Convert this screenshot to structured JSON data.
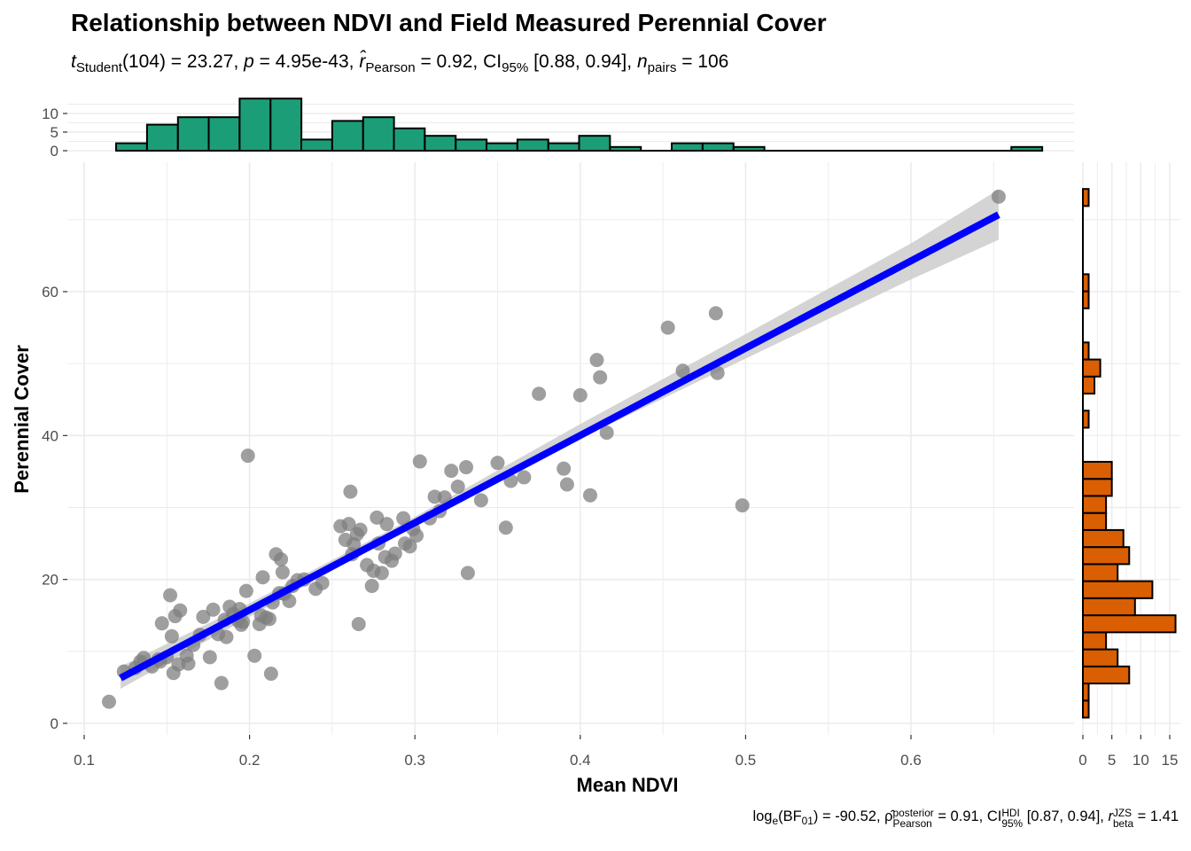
{
  "title": "Relationship between NDVI and Field Measured Perennial Cover",
  "subtitle": {
    "t_sym": "t",
    "t_sub": "Student",
    "df": "(104) = 23.27, ",
    "p_sym": "p",
    "p_val": " = 4.95e-43, ",
    "r_sym": "r̂",
    "r_sub": "Pearson",
    "r_val": " = 0.92, CI",
    "ci_sub": "95%",
    "ci_val": " [0.88, 0.94], ",
    "n_sym": "n",
    "n_sub": "pairs",
    "n_val": " = 106"
  },
  "caption": {
    "log": "log",
    "log_sub": "e",
    "bf": "(BF",
    "bf_sub": "01",
    "bf_val": ") = -90.52, ",
    "rho": "ρ̂",
    "rho_sup": "posterior",
    "rho_sub": "Pearson",
    "rho_val": " = 0.91, CI",
    "ci_sup": "HDI",
    "ci_sub": "95%",
    "ci_val": " [0.87, 0.94], ",
    "r_sym": "r",
    "r_sup": "JZS",
    "r_sub": "beta",
    "r_val": " = 1.41"
  },
  "chart_data": {
    "type": "scatter",
    "xlabel": "Mean NDVI",
    "ylabel": "Perennial Cover",
    "xlim": [
      0.1,
      0.67
    ],
    "ylim": [
      0,
      75
    ],
    "x_ticks": [
      0.1,
      0.2,
      0.3,
      0.4,
      0.5,
      0.6
    ],
    "x_tick_labels": [
      "0.1",
      "0.2",
      "0.3",
      "0.4",
      "0.5",
      "0.6"
    ],
    "y_ticks": [
      0,
      20,
      40,
      60
    ],
    "y_tick_labels": [
      "0",
      "20",
      "40",
      "60"
    ],
    "grid": true,
    "point_color": "#7f7f7f",
    "fit_line": {
      "x": [
        0.122,
        0.653
      ],
      "y": [
        6.3,
        70.7
      ],
      "color": "#0000ff"
    },
    "confidence_band": {
      "x": [
        0.122,
        0.2,
        0.3,
        0.4,
        0.5,
        0.6,
        0.653
      ],
      "lower": [
        4.8,
        14.8,
        27.6,
        39.6,
        50.7,
        61.7,
        67.2
      ],
      "upper": [
        7.9,
        16.7,
        28.7,
        41.6,
        54.1,
        66.7,
        74.2
      ],
      "color": "#cccccc"
    },
    "points": [
      [
        0.115,
        3.0
      ],
      [
        0.124,
        7.2
      ],
      [
        0.131,
        7.7
      ],
      [
        0.134,
        8.6
      ],
      [
        0.136,
        9.1
      ],
      [
        0.141,
        7.9
      ],
      [
        0.145,
        8.9
      ],
      [
        0.147,
        13.9
      ],
      [
        0.15,
        9.2
      ],
      [
        0.152,
        17.8
      ],
      [
        0.153,
        12.1
      ],
      [
        0.154,
        7.0
      ],
      [
        0.155,
        14.9
      ],
      [
        0.157,
        8.2
      ],
      [
        0.158,
        15.7
      ],
      [
        0.162,
        9.4
      ],
      [
        0.166,
        10.9
      ],
      [
        0.17,
        12.3
      ],
      [
        0.172,
        14.8
      ],
      [
        0.176,
        9.2
      ],
      [
        0.178,
        15.8
      ],
      [
        0.181,
        12.4
      ],
      [
        0.183,
        5.6
      ],
      [
        0.185,
        14.4
      ],
      [
        0.186,
        12.0
      ],
      [
        0.188,
        16.2
      ],
      [
        0.19,
        15.2
      ],
      [
        0.193,
        14.3
      ],
      [
        0.194,
        15.9
      ],
      [
        0.195,
        13.7
      ],
      [
        0.198,
        18.4
      ],
      [
        0.199,
        37.2
      ],
      [
        0.203,
        9.4
      ],
      [
        0.206,
        13.8
      ],
      [
        0.207,
        15.0
      ],
      [
        0.208,
        20.3
      ],
      [
        0.21,
        14.7
      ],
      [
        0.212,
        14.5
      ],
      [
        0.213,
        6.9
      ],
      [
        0.214,
        16.8
      ],
      [
        0.216,
        23.5
      ],
      [
        0.218,
        18.1
      ],
      [
        0.219,
        22.8
      ],
      [
        0.22,
        21.0
      ],
      [
        0.224,
        17.0
      ],
      [
        0.226,
        19.1
      ],
      [
        0.229,
        19.9
      ],
      [
        0.233,
        20.0
      ],
      [
        0.24,
        18.7
      ],
      [
        0.255,
        27.4
      ],
      [
        0.258,
        25.5
      ],
      [
        0.26,
        27.7
      ],
      [
        0.261,
        32.2
      ],
      [
        0.262,
        23.5
      ],
      [
        0.263,
        24.9
      ],
      [
        0.265,
        26.3
      ],
      [
        0.266,
        13.8
      ],
      [
        0.267,
        26.9
      ],
      [
        0.274,
        19.1
      ],
      [
        0.275,
        21.2
      ],
      [
        0.277,
        28.6
      ],
      [
        0.278,
        25.0
      ],
      [
        0.28,
        20.9
      ],
      [
        0.282,
        23.1
      ],
      [
        0.283,
        27.7
      ],
      [
        0.286,
        22.6
      ],
      [
        0.288,
        23.6
      ],
      [
        0.293,
        28.5
      ],
      [
        0.294,
        25.0
      ],
      [
        0.297,
        24.6
      ],
      [
        0.299,
        27.0
      ],
      [
        0.303,
        36.4
      ],
      [
        0.309,
        28.5
      ],
      [
        0.312,
        31.5
      ],
      [
        0.318,
        31.4
      ],
      [
        0.322,
        35.1
      ],
      [
        0.326,
        32.9
      ],
      [
        0.331,
        35.6
      ],
      [
        0.332,
        20.9
      ],
      [
        0.35,
        36.2
      ],
      [
        0.355,
        27.2
      ],
      [
        0.358,
        33.7
      ],
      [
        0.366,
        34.2
      ],
      [
        0.375,
        45.8
      ],
      [
        0.39,
        35.4
      ],
      [
        0.392,
        33.2
      ],
      [
        0.4,
        45.6
      ],
      [
        0.406,
        31.7
      ],
      [
        0.41,
        50.5
      ],
      [
        0.412,
        48.1
      ],
      [
        0.416,
        40.4
      ],
      [
        0.453,
        55.0
      ],
      [
        0.462,
        49.0
      ],
      [
        0.482,
        57.0
      ],
      [
        0.483,
        48.7
      ],
      [
        0.498,
        30.3
      ],
      [
        0.653,
        73.2
      ],
      [
        0.146,
        8.6
      ],
      [
        0.163,
        8.3
      ],
      [
        0.196,
        14.1
      ],
      [
        0.221,
        18.0
      ],
      [
        0.244,
        19.5
      ],
      [
        0.271,
        22.0
      ],
      [
        0.301,
        26.1
      ],
      [
        0.315,
        29.5
      ],
      [
        0.34,
        31.0
      ]
    ],
    "x_histogram": {
      "color": "#1b9e77",
      "bin_width": 0.01867,
      "bin_starts": [
        0.1193,
        0.138,
        0.1567,
        0.1753,
        0.194,
        0.2127,
        0.2313,
        0.25,
        0.2687,
        0.2873,
        0.306,
        0.3247,
        0.3433,
        0.362,
        0.3807,
        0.3993,
        0.418,
        0.4367,
        0.4553,
        0.474,
        0.4927,
        0.5113,
        0.53,
        0.5487,
        0.5673,
        0.586,
        0.6047,
        0.6233,
        0.642,
        0.6607
      ],
      "counts": [
        2,
        7,
        9,
        9,
        14,
        14,
        3,
        8,
        9,
        6,
        4,
        3,
        2,
        3,
        2,
        4,
        1,
        0,
        2,
        2,
        1,
        0,
        0,
        0,
        0,
        0,
        0,
        0,
        0,
        1
      ],
      "y_ticks": [
        0,
        5,
        10
      ],
      "y_tick_labels": [
        "0",
        "5",
        "10"
      ],
      "ylim": [
        0,
        14
      ]
    },
    "y_histogram": {
      "color": "#d95f02",
      "bin_width": 2.37,
      "bin_starts": [
        0.8,
        3.17,
        5.54,
        7.91,
        10.28,
        12.65,
        15.02,
        17.39,
        19.76,
        22.13,
        24.5,
        26.87,
        29.24,
        31.61,
        33.98,
        36.35,
        38.72,
        41.09,
        43.46,
        45.83,
        48.2,
        50.57,
        52.94,
        55.31,
        57.68,
        60.05,
        62.42,
        64.79,
        67.16,
        69.53,
        71.9
      ],
      "counts": [
        1,
        1,
        8,
        6,
        4,
        16,
        9,
        12,
        6,
        8,
        7,
        4,
        4,
        5,
        5,
        0,
        0,
        1,
        0,
        2,
        3,
        1,
        0,
        0,
        1,
        1,
        0,
        0,
        0,
        0,
        1
      ],
      "x_ticks": [
        0,
        5,
        10,
        15
      ],
      "x_tick_labels": [
        "0",
        "5",
        "10",
        "15"
      ],
      "xlim": [
        0,
        16
      ]
    }
  }
}
